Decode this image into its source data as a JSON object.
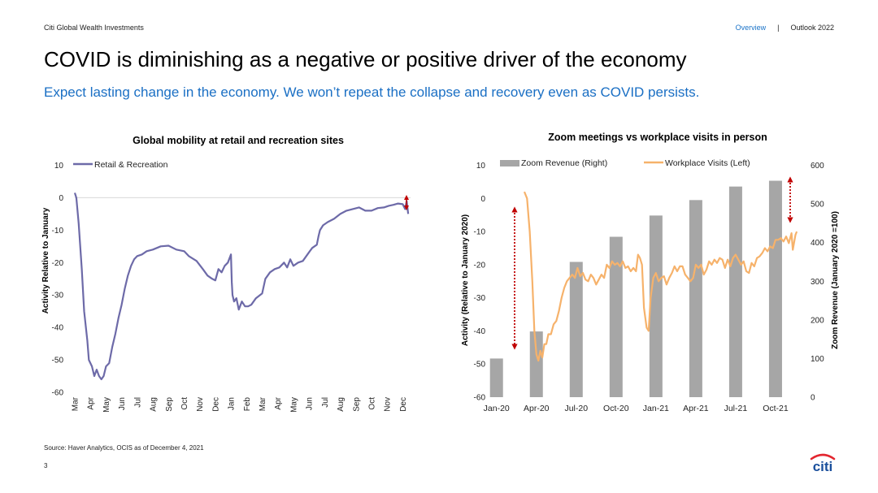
{
  "header": {
    "brand": "Citi Global Wealth Investments",
    "nav_overview": "Overview",
    "nav_separator": "|",
    "nav_outlook": "Outlook 2022"
  },
  "title": "COVID is diminishing as a negative or positive driver of the economy",
  "subtitle": "Expect lasting change in the economy. We won’t repeat the collapse and recovery even as COVID persists.",
  "footer": {
    "source": "Source: Haver Analytics, OCIS as of December 4, 2021",
    "page_number": "3",
    "logo_text": "citi"
  },
  "colors": {
    "accent_blue": "#1a6fc4",
    "mobility_line": "#6d6aa8",
    "zoom_bar": "#a6a6a6",
    "workplace_line": "#f6b26b",
    "arrow_red": "#c00000"
  },
  "chart_data": [
    {
      "type": "line",
      "title": "Global mobility at retail and recreation sites",
      "ylabel": "Activity Relative to January",
      "xlabel": "",
      "ylim": [
        -60,
        10
      ],
      "yticks": [
        "10",
        "0",
        "-10",
        "-20",
        "-30",
        "-40",
        "-50",
        "-60"
      ],
      "month_labels": [
        "Mar",
        "Apr",
        "May",
        "Jun",
        "Jul",
        "Aug",
        "Sep",
        "Oct",
        "Nov",
        "Dec",
        "Jan",
        "Feb",
        "Mar",
        "Apr",
        "May",
        "Jun",
        "Jul",
        "Aug",
        "Sep",
        "Oct",
        "Nov",
        "Dec"
      ],
      "x_range": [
        0,
        21.5
      ],
      "legend_position": "top-left",
      "grid": false,
      "series": [
        {
          "name": "Retail & Recreation",
          "points": [
            [
              0.0,
              1.5
            ],
            [
              0.1,
              0
            ],
            [
              0.25,
              -8
            ],
            [
              0.45,
              -22
            ],
            [
              0.6,
              -35
            ],
            [
              0.8,
              -44
            ],
            [
              0.9,
              -50
            ],
            [
              1.1,
              -52
            ],
            [
              1.25,
              -55
            ],
            [
              1.4,
              -53
            ],
            [
              1.55,
              -55
            ],
            [
              1.7,
              -56
            ],
            [
              1.85,
              -55
            ],
            [
              2.0,
              -52
            ],
            [
              2.2,
              -51
            ],
            [
              2.4,
              -46
            ],
            [
              2.6,
              -42
            ],
            [
              2.8,
              -37
            ],
            [
              3.0,
              -33
            ],
            [
              3.2,
              -28
            ],
            [
              3.4,
              -24
            ],
            [
              3.6,
              -21
            ],
            [
              3.8,
              -19
            ],
            [
              4.0,
              -18
            ],
            [
              4.3,
              -17.5
            ],
            [
              4.6,
              -16.5
            ],
            [
              5.0,
              -16
            ],
            [
              5.5,
              -15
            ],
            [
              6.0,
              -14.8
            ],
            [
              6.5,
              -16
            ],
            [
              7.0,
              -16.5
            ],
            [
              7.3,
              -18
            ],
            [
              7.8,
              -19.5
            ],
            [
              8.2,
              -22
            ],
            [
              8.5,
              -24
            ],
            [
              8.8,
              -25
            ],
            [
              9.0,
              -25.5
            ],
            [
              9.2,
              -22
            ],
            [
              9.4,
              -23
            ],
            [
              9.6,
              -21
            ],
            [
              9.8,
              -20
            ],
            [
              10.0,
              -17.5
            ],
            [
              10.05,
              -26
            ],
            [
              10.1,
              -30
            ],
            [
              10.2,
              -32
            ],
            [
              10.35,
              -31
            ],
            [
              10.5,
              -34.5
            ],
            [
              10.7,
              -32
            ],
            [
              10.9,
              -33.5
            ],
            [
              11.1,
              -33.5
            ],
            [
              11.3,
              -33
            ],
            [
              11.6,
              -31
            ],
            [
              12.0,
              -29.5
            ],
            [
              12.2,
              -25
            ],
            [
              12.5,
              -23
            ],
            [
              12.8,
              -22
            ],
            [
              13.1,
              -21.5
            ],
            [
              13.4,
              -20
            ],
            [
              13.6,
              -21.5
            ],
            [
              13.8,
              -19
            ],
            [
              14.0,
              -21
            ],
            [
              14.3,
              -20
            ],
            [
              14.6,
              -19.5
            ],
            [
              14.9,
              -17.5
            ],
            [
              15.2,
              -15.5
            ],
            [
              15.5,
              -14.5
            ],
            [
              15.6,
              -12
            ],
            [
              15.7,
              -10
            ],
            [
              15.9,
              -8.5
            ],
            [
              16.2,
              -7.5
            ],
            [
              16.6,
              -6.5
            ],
            [
              17.0,
              -5
            ],
            [
              17.4,
              -4
            ],
            [
              17.8,
              -3.5
            ],
            [
              18.2,
              -3
            ],
            [
              18.6,
              -4
            ],
            [
              19.0,
              -4
            ],
            [
              19.4,
              -3.2
            ],
            [
              19.8,
              -3
            ],
            [
              20.1,
              -2.5
            ],
            [
              20.4,
              -2.2
            ],
            [
              20.7,
              -1.8
            ],
            [
              21.0,
              -2
            ],
            [
              21.15,
              -3.5
            ],
            [
              21.25,
              -1
            ],
            [
              21.35,
              -5
            ]
          ]
        }
      ]
    },
    {
      "type": "bar",
      "title": "Zoom meetings vs workplace visits in person",
      "ylabel_left": "Activity (Relative to January 2020)",
      "ylabel_right": "Zoom Revenue (January 2020 =100)",
      "ylim_left": [
        -60,
        10
      ],
      "ylim_right": [
        0,
        600
      ],
      "yticks_left": [
        "10",
        "0",
        "-10",
        "-20",
        "-30",
        "-40",
        "-50",
        "-60"
      ],
      "yticks_right": [
        "600",
        "500",
        "400",
        "300",
        "200",
        "100",
        "0"
      ],
      "xtick_labels": [
        "Jan-20",
        "Apr-20",
        "Jul-20",
        "Oct-20",
        "Jan-21",
        "Apr-21",
        "Jul-21",
        "Oct-21"
      ],
      "x_range": [
        -0.35,
        22.9
      ],
      "legend_position": "top",
      "grid": false,
      "series": [
        {
          "name": "Zoom Revenue (Right)",
          "axis": "right",
          "type": "bar",
          "x": [
            0,
            3,
            6,
            9,
            12,
            15,
            18,
            21
          ],
          "values": [
            100,
            170,
            350,
            415,
            470,
            510,
            545,
            560
          ]
        },
        {
          "name": "Workplace Visits (Left)",
          "axis": "left",
          "type": "line",
          "points": [
            [
              2.1,
              2
            ],
            [
              2.3,
              0
            ],
            [
              2.5,
              -10
            ],
            [
              2.7,
              -25
            ],
            [
              2.85,
              -40
            ],
            [
              3.0,
              -47
            ],
            [
              3.15,
              -49
            ],
            [
              3.3,
              -46
            ],
            [
              3.45,
              -48
            ],
            [
              3.6,
              -44
            ],
            [
              3.75,
              -44
            ],
            [
              3.9,
              -41
            ],
            [
              4.1,
              -41
            ],
            [
              4.3,
              -38
            ],
            [
              4.5,
              -37
            ],
            [
              4.7,
              -34
            ],
            [
              4.9,
              -30
            ],
            [
              5.1,
              -27
            ],
            [
              5.3,
              -25
            ],
            [
              5.5,
              -24
            ],
            [
              5.7,
              -23
            ],
            [
              5.9,
              -24
            ],
            [
              6.1,
              -21
            ],
            [
              6.3,
              -23.5
            ],
            [
              6.5,
              -22.5
            ],
            [
              6.7,
              -24.5
            ],
            [
              6.9,
              -25
            ],
            [
              7.1,
              -23
            ],
            [
              7.3,
              -24
            ],
            [
              7.5,
              -26
            ],
            [
              7.7,
              -24.5
            ],
            [
              7.9,
              -23
            ],
            [
              8.1,
              -24
            ],
            [
              8.3,
              -20
            ],
            [
              8.5,
              -21
            ],
            [
              8.7,
              -19
            ],
            [
              8.9,
              -20
            ],
            [
              9.1,
              -19.5
            ],
            [
              9.3,
              -20.5
            ],
            [
              9.5,
              -19
            ],
            [
              9.7,
              -21
            ],
            [
              9.9,
              -20.5
            ],
            [
              10.1,
              -22
            ],
            [
              10.3,
              -21
            ],
            [
              10.5,
              -22
            ],
            [
              10.65,
              -17
            ],
            [
              10.8,
              -18
            ],
            [
              10.95,
              -20
            ],
            [
              11.1,
              -33
            ],
            [
              11.3,
              -39
            ],
            [
              11.45,
              -40
            ],
            [
              11.6,
              -30
            ],
            [
              11.8,
              -24
            ],
            [
              12.0,
              -22.5
            ],
            [
              12.2,
              -25
            ],
            [
              12.4,
              -24
            ],
            [
              12.6,
              -23.5
            ],
            [
              12.8,
              -26
            ],
            [
              13.0,
              -24
            ],
            [
              13.2,
              -22.5
            ],
            [
              13.4,
              -20.5
            ],
            [
              13.6,
              -22
            ],
            [
              13.8,
              -20.5
            ],
            [
              14.0,
              -20.5
            ],
            [
              14.2,
              -23
            ],
            [
              14.4,
              -24
            ],
            [
              14.6,
              -25
            ],
            [
              14.8,
              -24
            ],
            [
              15.0,
              -20
            ],
            [
              15.2,
              -21
            ],
            [
              15.4,
              -20
            ],
            [
              15.6,
              -23
            ],
            [
              15.8,
              -21.5
            ],
            [
              16.0,
              -19
            ],
            [
              16.2,
              -20
            ],
            [
              16.4,
              -18.5
            ],
            [
              16.6,
              -19.5
            ],
            [
              16.8,
              -18
            ],
            [
              17.0,
              -18.5
            ],
            [
              17.2,
              -21
            ],
            [
              17.4,
              -18.5
            ],
            [
              17.6,
              -20.5
            ],
            [
              17.8,
              -18
            ],
            [
              18.0,
              -17
            ],
            [
              18.2,
              -18.5
            ],
            [
              18.4,
              -20
            ],
            [
              18.6,
              -19
            ],
            [
              18.8,
              -22
            ],
            [
              19.0,
              -22.5
            ],
            [
              19.2,
              -19.5
            ],
            [
              19.4,
              -20.5
            ],
            [
              19.6,
              -18
            ],
            [
              19.8,
              -17.5
            ],
            [
              20.0,
              -16.5
            ],
            [
              20.2,
              -15
            ],
            [
              20.4,
              -16
            ],
            [
              20.6,
              -14.5
            ],
            [
              20.8,
              -15
            ],
            [
              21.0,
              -12.5
            ],
            [
              21.2,
              -12.5
            ],
            [
              21.4,
              -12
            ],
            [
              21.6,
              -13
            ],
            [
              21.8,
              -11.5
            ],
            [
              22.0,
              -13.5
            ],
            [
              22.2,
              -10.5
            ],
            [
              22.3,
              -15.5
            ],
            [
              22.5,
              -11
            ],
            [
              22.6,
              -10
            ]
          ]
        }
      ]
    }
  ]
}
